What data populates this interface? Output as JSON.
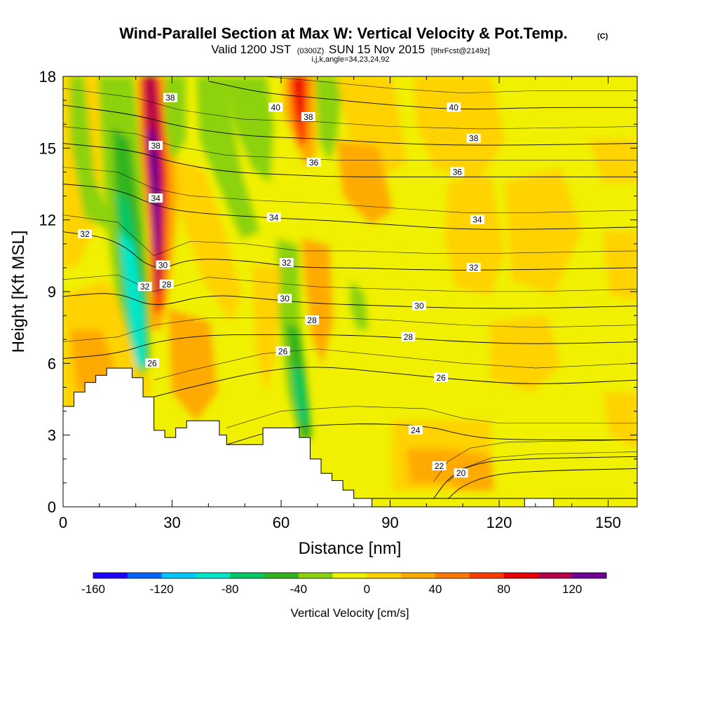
{
  "title": {
    "main": "Wind-Parallel Section at Max W: Vertical Velocity & Pot.Temp.",
    "copyright": "(C)",
    "valid_prefix": "Valid 1200 JST",
    "valid_z": "(0300Z)",
    "valid_date": "SUN 15 Nov 2015",
    "valid_fcst": "[9hrFcst@2149z]",
    "indices": "i,j,k,angle=34,23,24,92"
  },
  "chart_data": {
    "type": "heatmap",
    "xlabel": "Distance [nm]",
    "ylabel": "Height [Kft MSL]",
    "xlim": [
      0,
      158
    ],
    "ylim": [
      0,
      18
    ],
    "x_ticks": [
      "0",
      "30",
      "60",
      "90",
      "120",
      "150"
    ],
    "y_ticks": [
      "0",
      "3",
      "6",
      "9",
      "12",
      "15",
      "18"
    ],
    "colorbar": {
      "label": "Vertical Velocity [cm/s]",
      "tick_labels": [
        "-160",
        "-120",
        "-80",
        "-40",
        "0",
        "40",
        "80",
        "120"
      ],
      "tick_values": [
        -160,
        -120,
        -80,
        -40,
        0,
        40,
        80,
        120
      ],
      "range": [
        -160,
        140
      ],
      "colors": [
        "#1e00ff",
        "#0064ff",
        "#00c8ff",
        "#00e6c8",
        "#00c864",
        "#32b41e",
        "#8cd20a",
        "#f0f000",
        "#ffd200",
        "#ffaa00",
        "#ff7800",
        "#ff3c00",
        "#e60000",
        "#b40046",
        "#6e0096"
      ]
    },
    "terrain_kft": [
      [
        0,
        4.2
      ],
      [
        3,
        4.2
      ],
      [
        3,
        4.8
      ],
      [
        6,
        4.8
      ],
      [
        6,
        5.2
      ],
      [
        9,
        5.2
      ],
      [
        9,
        5.5
      ],
      [
        12,
        5.5
      ],
      [
        12,
        5.8
      ],
      [
        19,
        5.8
      ],
      [
        19,
        5.4
      ],
      [
        22,
        5.4
      ],
      [
        22,
        4.6
      ],
      [
        25,
        4.6
      ],
      [
        25,
        3.2
      ],
      [
        28,
        3.2
      ],
      [
        28,
        2.9
      ],
      [
        31,
        2.9
      ],
      [
        31,
        3.3
      ],
      [
        34,
        3.3
      ],
      [
        34,
        3.6
      ],
      [
        43,
        3.6
      ],
      [
        43,
        3
      ],
      [
        45,
        3
      ],
      [
        45,
        2.6
      ],
      [
        55,
        2.6
      ],
      [
        55,
        3.3
      ],
      [
        65,
        3.3
      ],
      [
        65,
        2.9
      ],
      [
        68,
        2.9
      ],
      [
        68,
        2
      ],
      [
        71,
        2
      ],
      [
        71,
        1.4
      ],
      [
        74,
        1.4
      ],
      [
        74,
        1.1
      ],
      [
        77,
        1.1
      ],
      [
        77,
        0.7
      ],
      [
        80,
        0.7
      ],
      [
        80,
        0.35
      ],
      [
        85,
        0.35
      ],
      [
        85,
        0
      ],
      [
        158,
        0
      ]
    ],
    "theta_contours": [
      {
        "label": "20",
        "points": [
          [
            106,
            0.35
          ],
          [
            110,
            0.9
          ],
          [
            118,
            1.35
          ],
          [
            130,
            1.5
          ],
          [
            158,
            1.6
          ]
        ]
      },
      {
        "label": "22",
        "points": [
          [
            102,
            0.35
          ],
          [
            106,
            1.2
          ],
          [
            112,
            1.75
          ],
          [
            122,
            2
          ],
          [
            158,
            2.1
          ]
        ]
      },
      {
        "label": "24",
        "points": [
          [
            45,
            2.6
          ],
          [
            60,
            3.3
          ],
          [
            80,
            3.5
          ],
          [
            100,
            3.4
          ],
          [
            110,
            3
          ],
          [
            120,
            2.8
          ],
          [
            158,
            2.8
          ]
        ]
      },
      {
        "label": "26",
        "points": [
          [
            25,
            4.6
          ],
          [
            35,
            5
          ],
          [
            55,
            5.7
          ],
          [
            70,
            5.9
          ],
          [
            90,
            5.6
          ],
          [
            110,
            5.3
          ],
          [
            130,
            5.1
          ],
          [
            158,
            5.3
          ]
        ]
      },
      {
        "label": "28",
        "points": [
          [
            0,
            6.2
          ],
          [
            15,
            6.4
          ],
          [
            25,
            6.9
          ],
          [
            40,
            7.2
          ],
          [
            60,
            7.2
          ],
          [
            75,
            7.2
          ],
          [
            90,
            7.1
          ],
          [
            110,
            6.9
          ],
          [
            130,
            6.8
          ],
          [
            158,
            6.9
          ]
        ]
      },
      {
        "label": "30",
        "points": [
          [
            0,
            8.8
          ],
          [
            15,
            9
          ],
          [
            25,
            8.3
          ],
          [
            40,
            8.9
          ],
          [
            55,
            8.7
          ],
          [
            70,
            8.5
          ],
          [
            90,
            8.4
          ],
          [
            110,
            8.3
          ],
          [
            130,
            8.3
          ],
          [
            158,
            8.4
          ]
        ]
      },
      {
        "label": "32",
        "points": [
          [
            0,
            11.5
          ],
          [
            15,
            11.2
          ],
          [
            25,
            9.8
          ],
          [
            35,
            10.4
          ],
          [
            50,
            10.3
          ],
          [
            65,
            10
          ],
          [
            80,
            10
          ],
          [
            100,
            9.9
          ],
          [
            120,
            9.9
          ],
          [
            158,
            10
          ]
        ]
      },
      {
        "label": "34",
        "points": [
          [
            0,
            13.5
          ],
          [
            15,
            13.3
          ],
          [
            25,
            12.6
          ],
          [
            35,
            12.3
          ],
          [
            55,
            12.1
          ],
          [
            70,
            12
          ],
          [
            90,
            11.8
          ],
          [
            110,
            11.6
          ],
          [
            130,
            11.6
          ],
          [
            158,
            11.7
          ]
        ]
      },
      {
        "label": "36",
        "points": [
          [
            0,
            15.2
          ],
          [
            20,
            14.9
          ],
          [
            30,
            14.4
          ],
          [
            45,
            14
          ],
          [
            60,
            13.9
          ],
          [
            75,
            13.8
          ],
          [
            95,
            13.8
          ],
          [
            115,
            13.8
          ],
          [
            158,
            13.8
          ]
        ]
      },
      {
        "label": "38",
        "points": [
          [
            0,
            16.8
          ],
          [
            20,
            16.4
          ],
          [
            32,
            15.9
          ],
          [
            50,
            15.5
          ],
          [
            70,
            15.4
          ],
          [
            90,
            15.2
          ],
          [
            115,
            15.1
          ],
          [
            158,
            15.2
          ]
        ]
      },
      {
        "label": "40",
        "points": [
          [
            40,
            17.8
          ],
          [
            55,
            17.3
          ],
          [
            70,
            17.1
          ],
          [
            90,
            16.8
          ],
          [
            110,
            16.6
          ],
          [
            130,
            16.7
          ],
          [
            158,
            16.7
          ]
        ]
      }
    ],
    "contour_labels": [
      {
        "text": "38",
        "x": 29.5,
        "y": 17.1
      },
      {
        "text": "38",
        "x": 25.5,
        "y": 15.1
      },
      {
        "text": "34",
        "x": 25.5,
        "y": 12.9
      },
      {
        "text": "32",
        "x": 6,
        "y": 11.4
      },
      {
        "text": "30",
        "x": 27.5,
        "y": 10.1
      },
      {
        "text": "32",
        "x": 22.5,
        "y": 9.2
      },
      {
        "text": "28",
        "x": 28.5,
        "y": 9.3
      },
      {
        "text": "26",
        "x": 24.5,
        "y": 6
      },
      {
        "text": "40",
        "x": 58.5,
        "y": 16.7
      },
      {
        "text": "38",
        "x": 67.5,
        "y": 16.3
      },
      {
        "text": "36",
        "x": 69,
        "y": 14.4
      },
      {
        "text": "34",
        "x": 58,
        "y": 12.1
      },
      {
        "text": "32",
        "x": 61.5,
        "y": 10.2
      },
      {
        "text": "30",
        "x": 61,
        "y": 8.7
      },
      {
        "text": "28",
        "x": 68.5,
        "y": 7.8
      },
      {
        "text": "26",
        "x": 60.5,
        "y": 6.5
      },
      {
        "text": "40",
        "x": 107.5,
        "y": 16.7
      },
      {
        "text": "38",
        "x": 113,
        "y": 15.4
      },
      {
        "text": "36",
        "x": 108.5,
        "y": 14
      },
      {
        "text": "34",
        "x": 114,
        "y": 12
      },
      {
        "text": "32",
        "x": 113,
        "y": 10
      },
      {
        "text": "30",
        "x": 98,
        "y": 8.4
      },
      {
        "text": "28",
        "x": 95,
        "y": 7.1
      },
      {
        "text": "26",
        "x": 104,
        "y": 5.4
      },
      {
        "text": "24",
        "x": 97,
        "y": 3.2
      },
      {
        "text": "22",
        "x": 103.5,
        "y": 1.7
      },
      {
        "text": "20",
        "x": 109.5,
        "y": 1.4
      }
    ],
    "grid": false
  }
}
